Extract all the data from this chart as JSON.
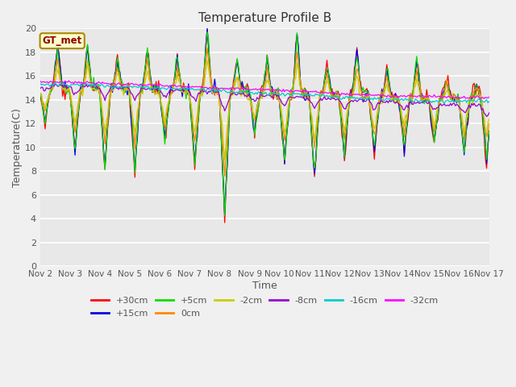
{
  "title": "Temperature Profile B",
  "xlabel": "Time",
  "ylabel": "Temperature(C)",
  "annotation": "GT_met",
  "ylim": [
    0,
    20
  ],
  "xlim": [
    0,
    360
  ],
  "xtick_labels": [
    "Nov 2",
    "Nov 3",
    "Nov 4",
    "Nov 5",
    "Nov 6",
    "Nov 7",
    "Nov 8",
    "Nov 9",
    "Nov 10",
    "Nov 11",
    "Nov 12",
    "Nov 13",
    "Nov 14",
    "Nov 15",
    "Nov 16",
    "Nov 17"
  ],
  "xtick_positions": [
    0,
    24,
    48,
    72,
    96,
    120,
    144,
    168,
    192,
    216,
    240,
    264,
    288,
    312,
    336,
    360
  ],
  "ytick_labels": [
    "0",
    "2",
    "4",
    "6",
    "8",
    "10",
    "12",
    "14",
    "16",
    "18",
    "20"
  ],
  "ytick_positions": [
    0,
    2,
    4,
    6,
    8,
    10,
    12,
    14,
    16,
    18,
    20
  ],
  "bg_color": "#e8e8e8",
  "grid_color": "#ffffff",
  "fig_facecolor": "#f0f0f0",
  "series": [
    {
      "label": "+30cm",
      "color": "#ff0000"
    },
    {
      "label": "+15cm",
      "color": "#0000dd"
    },
    {
      "label": "+5cm",
      "color": "#00dd00"
    },
    {
      "label": "0cm",
      "color": "#ff8800"
    },
    {
      "label": "-2cm",
      "color": "#cccc00"
    },
    {
      "label": "-8cm",
      "color": "#9900cc"
    },
    {
      "label": "-16cm",
      "color": "#00cccc"
    },
    {
      "label": "-32cm",
      "color": "#ff00ff"
    }
  ],
  "legend_ncol_row1": 6,
  "legend_ncol_row2": 2
}
